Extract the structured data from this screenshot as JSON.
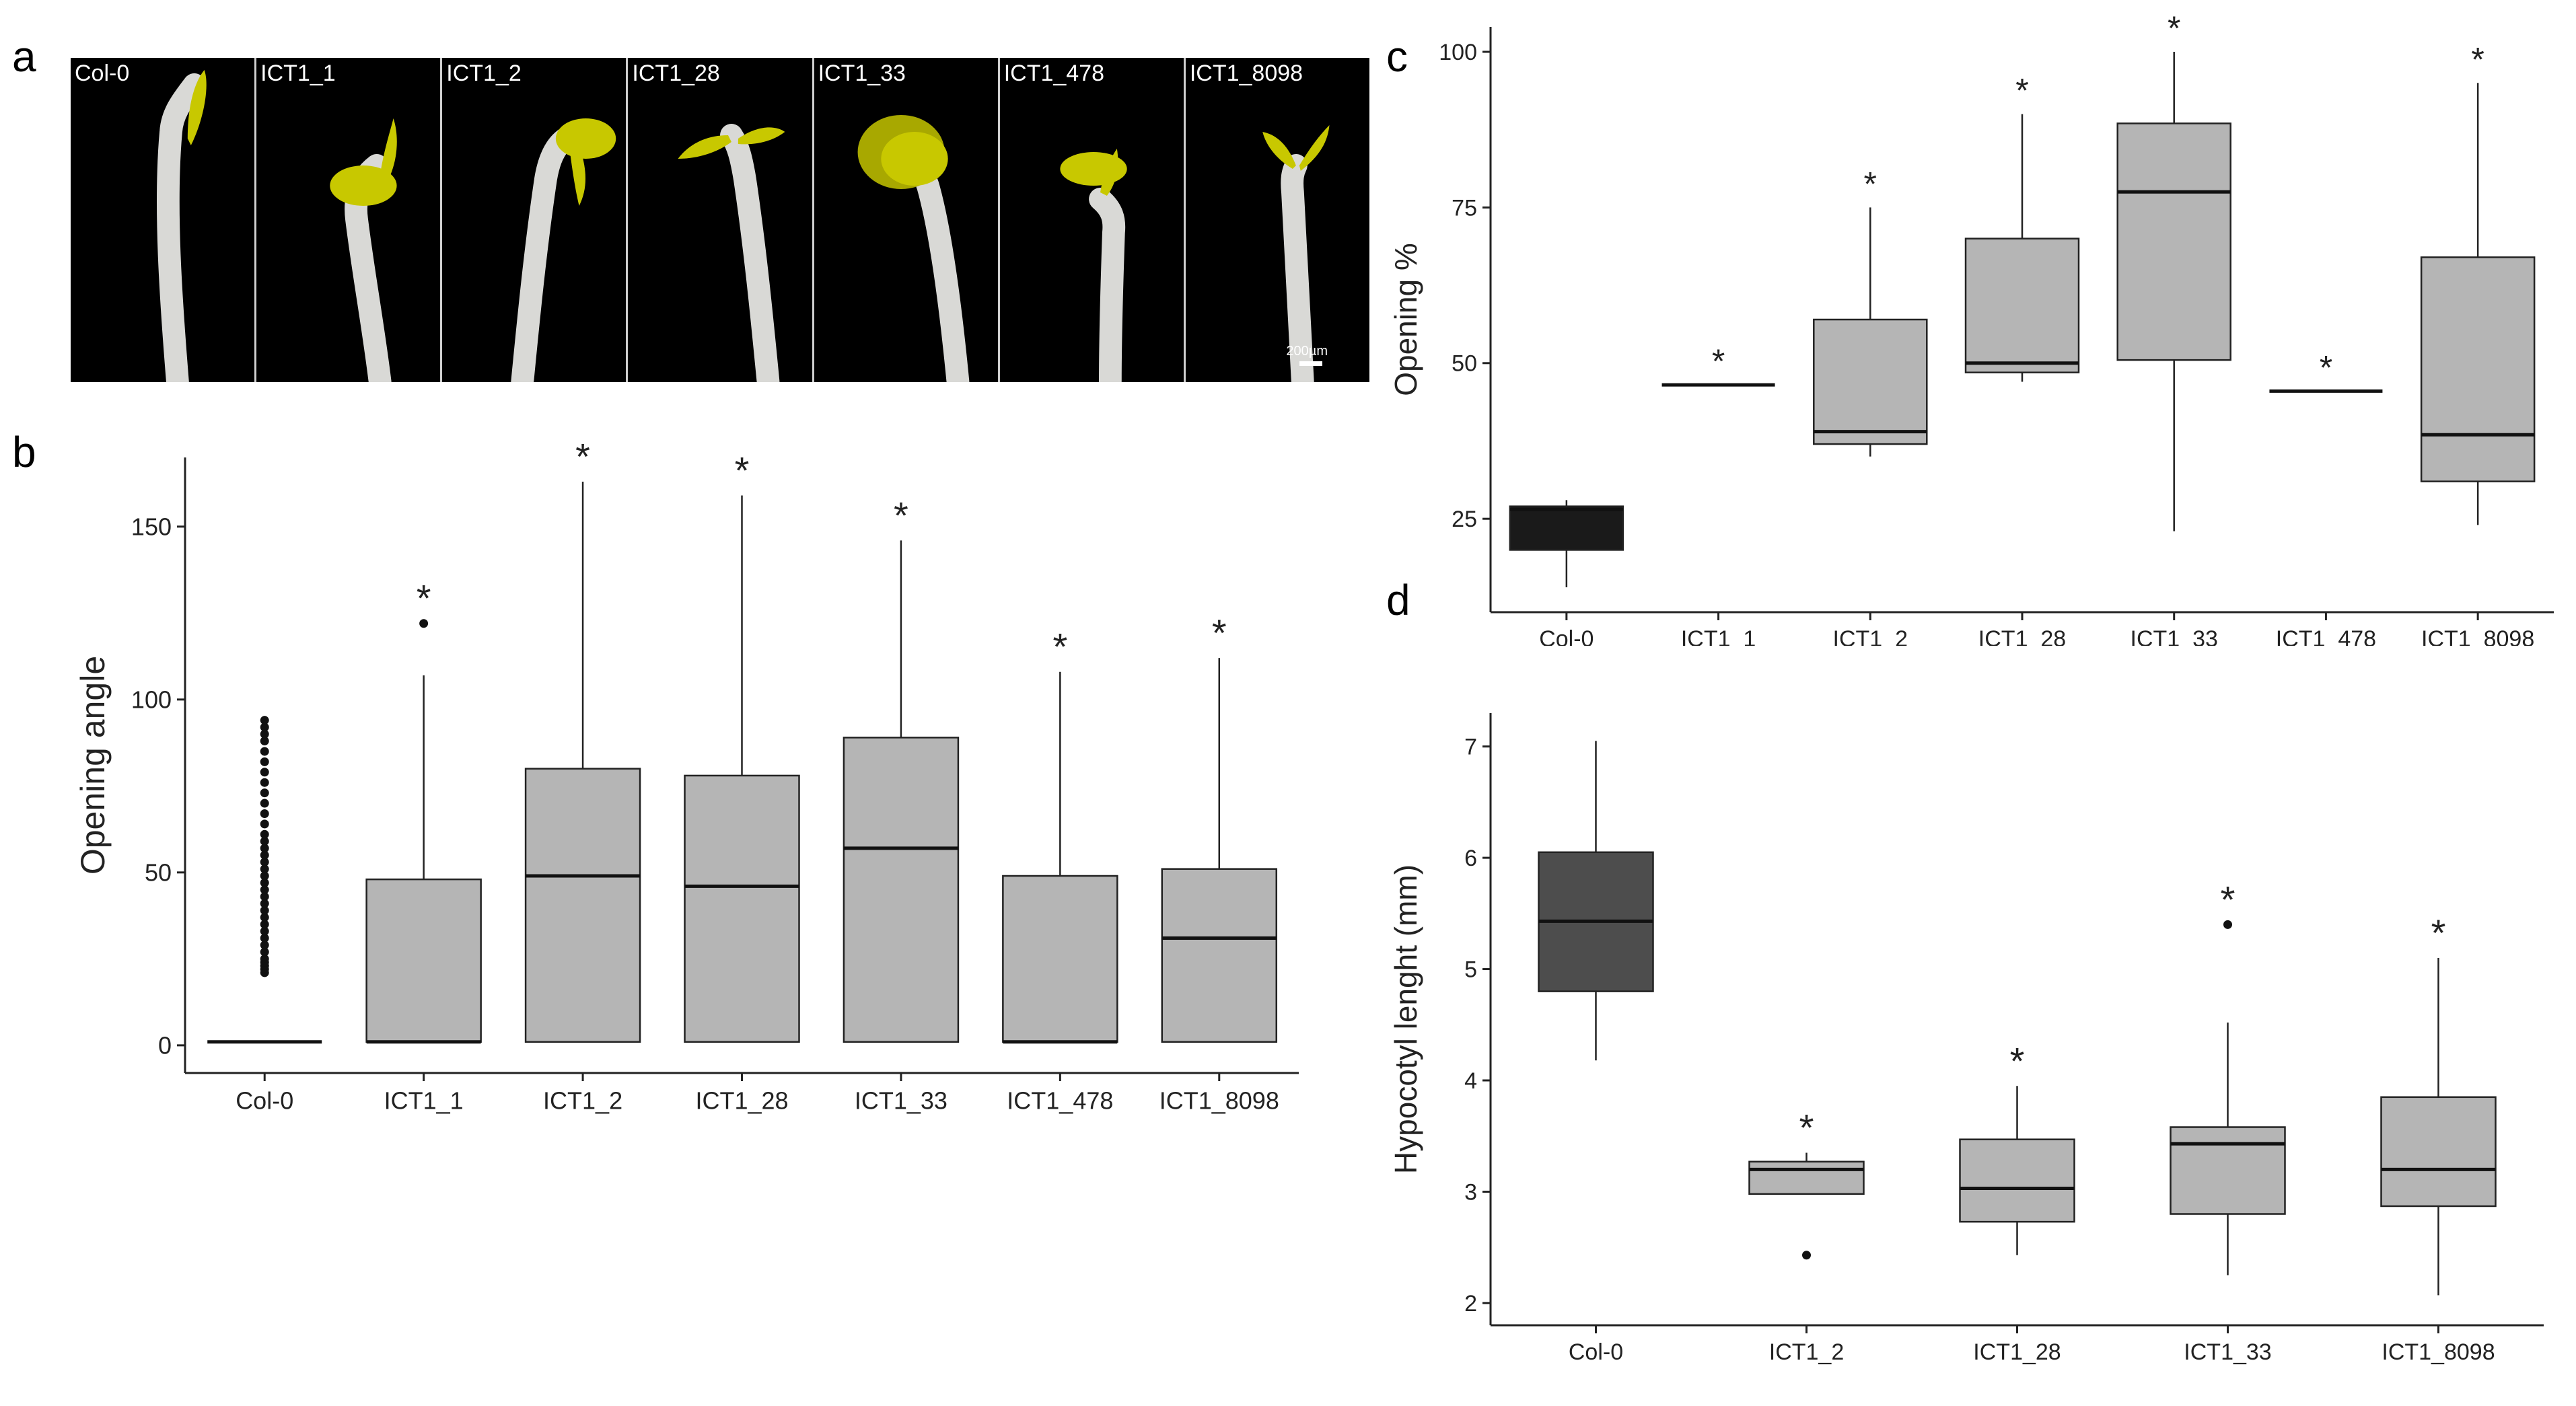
{
  "panel_letters": {
    "a": "a",
    "b": "b",
    "c": "c",
    "d": "d"
  },
  "photos": {
    "labels": [
      "Col-0",
      "ICT1_1",
      "ICT1_2",
      "ICT1_28",
      "ICT1_33",
      "ICT1_478",
      "ICT1_8098"
    ],
    "scale_bar_label": "200µm"
  },
  "colors": {
    "grey_box": "#b5b5b5",
    "black_box": "#1a1a1a",
    "dark_box": "#4d4d4d",
    "seedling": "#c8c800",
    "stem": "#d9d9d6"
  },
  "chart_data": [
    {
      "id": "b",
      "type": "box",
      "title": "",
      "xlabel": "",
      "ylabel": "Opening angle",
      "ylim": [
        -8,
        170
      ],
      "yticks": [
        0,
        50,
        100,
        150
      ],
      "categories": [
        "Col-0",
        "ICT1_1",
        "ICT1_2",
        "ICT1_28",
        "ICT1_33",
        "ICT1_478",
        "ICT1_8098"
      ],
      "boxes": [
        {
          "q1": 1,
          "median": 1,
          "q3": 1,
          "whisker_low": 1,
          "whisker_high": 1,
          "color": "#b5b5b5",
          "sig": "",
          "outliers": [
            21,
            22,
            23,
            24,
            25,
            27,
            29,
            31,
            33,
            35,
            37,
            39,
            41,
            43,
            45,
            47,
            49,
            51,
            53,
            55,
            57,
            59,
            61,
            64,
            67,
            70,
            73,
            76,
            79,
            82,
            85,
            88,
            90,
            92,
            94
          ]
        },
        {
          "q1": 1,
          "median": 1,
          "q3": 48,
          "whisker_low": 1,
          "whisker_high": 107,
          "color": "#b5b5b5",
          "sig": "*",
          "outliers": [
            122
          ]
        },
        {
          "q1": 1,
          "median": 49,
          "q3": 80,
          "whisker_low": 1,
          "whisker_high": 163,
          "color": "#b5b5b5",
          "sig": "*",
          "outliers": []
        },
        {
          "q1": 1,
          "median": 46,
          "q3": 78,
          "whisker_low": 1,
          "whisker_high": 159,
          "color": "#b5b5b5",
          "sig": "*",
          "outliers": []
        },
        {
          "q1": 1,
          "median": 57,
          "q3": 89,
          "whisker_low": 1,
          "whisker_high": 146,
          "color": "#b5b5b5",
          "sig": "*",
          "outliers": []
        },
        {
          "q1": 1,
          "median": 1,
          "q3": 49,
          "whisker_low": 1,
          "whisker_high": 108,
          "color": "#b5b5b5",
          "sig": "*",
          "outliers": []
        },
        {
          "q1": 1,
          "median": 31,
          "q3": 51,
          "whisker_low": 1,
          "whisker_high": 112,
          "color": "#b5b5b5",
          "sig": "*",
          "outliers": []
        }
      ]
    },
    {
      "id": "c",
      "type": "box",
      "title": "",
      "xlabel": "",
      "ylabel": "Opening %",
      "ylim": [
        10,
        104
      ],
      "yticks": [
        25,
        50,
        75,
        100
      ],
      "categories": [
        "Col-0",
        "ICT1_1",
        "ICT1_2",
        "ICT1_28",
        "ICT1_33",
        "ICT1_478",
        "ICT1_8098"
      ],
      "boxes": [
        {
          "q1": 20,
          "median": 26.5,
          "q3": 27,
          "whisker_low": 14,
          "whisker_high": 28,
          "color": "#1a1a1a",
          "sig": "",
          "outliers": []
        },
        {
          "q1": 46.5,
          "median": 46.5,
          "q3": 46.5,
          "whisker_low": 46.5,
          "whisker_high": 46.5,
          "color": "#b5b5b5",
          "sig": "*",
          "outliers": []
        },
        {
          "q1": 37,
          "median": 39,
          "q3": 57,
          "whisker_low": 35,
          "whisker_high": 75,
          "color": "#b5b5b5",
          "sig": "*",
          "outliers": []
        },
        {
          "q1": 48.5,
          "median": 50,
          "q3": 70,
          "whisker_low": 47,
          "whisker_high": 90,
          "color": "#b5b5b5",
          "sig": "*",
          "outliers": []
        },
        {
          "q1": 50.5,
          "median": 77.5,
          "q3": 88.5,
          "whisker_low": 23,
          "whisker_high": 100,
          "color": "#b5b5b5",
          "sig": "*",
          "outliers": []
        },
        {
          "q1": 45.5,
          "median": 45.5,
          "q3": 45.5,
          "whisker_low": 45.5,
          "whisker_high": 45.5,
          "color": "#b5b5b5",
          "sig": "*",
          "outliers": []
        },
        {
          "q1": 31,
          "median": 38.5,
          "q3": 67,
          "whisker_low": 24,
          "whisker_high": 95,
          "color": "#b5b5b5",
          "sig": "*",
          "outliers": []
        }
      ]
    },
    {
      "id": "d",
      "type": "box",
      "title": "",
      "xlabel": "",
      "ylabel": "Hypocotyl lenght (mm)",
      "ylim": [
        1.8,
        7.3
      ],
      "yticks": [
        2,
        3,
        4,
        5,
        6,
        7
      ],
      "categories": [
        "Col-0",
        "ICT1_2",
        "ICT1_28",
        "ICT1_33",
        "ICT1_8098"
      ],
      "boxes": [
        {
          "q1": 4.8,
          "median": 5.43,
          "q3": 6.05,
          "whisker_low": 4.18,
          "whisker_high": 7.05,
          "color": "#4d4d4d",
          "sig": "",
          "outliers": []
        },
        {
          "q1": 2.98,
          "median": 3.2,
          "q3": 3.27,
          "whisker_low": 2.98,
          "whisker_high": 3.35,
          "color": "#b5b5b5",
          "sig": "*",
          "outliers": [
            2.43
          ]
        },
        {
          "q1": 2.73,
          "median": 3.03,
          "q3": 3.47,
          "whisker_low": 2.43,
          "whisker_high": 3.95,
          "color": "#b5b5b5",
          "sig": "*",
          "outliers": []
        },
        {
          "q1": 2.8,
          "median": 3.43,
          "q3": 3.58,
          "whisker_low": 2.25,
          "whisker_high": 4.52,
          "color": "#b5b5b5",
          "sig": "*",
          "outliers": [
            5.4
          ]
        },
        {
          "q1": 2.87,
          "median": 3.2,
          "q3": 3.85,
          "whisker_low": 2.07,
          "whisker_high": 5.1,
          "color": "#b5b5b5",
          "sig": "*",
          "outliers": []
        }
      ]
    }
  ]
}
